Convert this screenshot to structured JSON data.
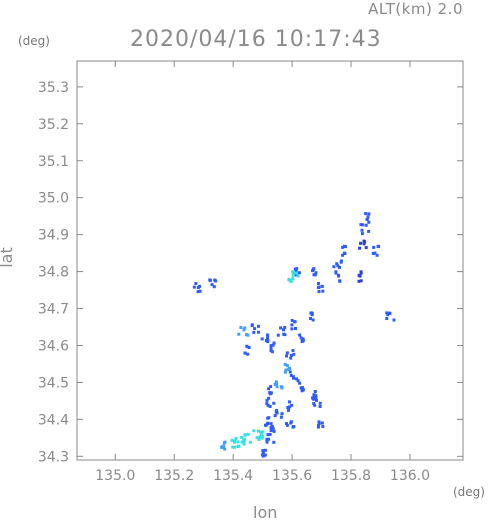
{
  "header": {
    "altitude": "ALT(km) 2.0",
    "timestamp": "2020/04/16 10:17:43"
  },
  "axes": {
    "y_unit": "(deg)",
    "x_unit": "(deg)",
    "ylabel": "lat",
    "xlabel": "lon",
    "xlim": [
      134.87,
      136.18
    ],
    "ylim": [
      34.29,
      35.37
    ],
    "xticks": [
      "135.0",
      "135.2",
      "135.4",
      "135.6",
      "135.8",
      "136.0"
    ],
    "xtick_values": [
      135.0,
      135.2,
      135.4,
      135.6,
      135.8,
      136.0
    ],
    "yticks": [
      "34.3",
      "34.4",
      "34.5",
      "34.6",
      "34.7",
      "34.8",
      "34.9",
      "35.0",
      "35.1",
      "35.2",
      "35.3"
    ],
    "ytick_values": [
      34.3,
      34.4,
      34.5,
      34.6,
      34.7,
      34.8,
      34.9,
      35.0,
      35.1,
      35.2,
      35.3
    ]
  },
  "colors": {
    "frame": "#888888",
    "echo_weak": "#2f5bff",
    "echo_medium": "#3fa0ff",
    "echo_strong": "#38e0e0",
    "echo_dark": "#2a3fd8"
  },
  "chart_data": {
    "type": "heatmap",
    "description_units": "lon/lat degrees",
    "cells": [
      {
        "lon": 135.86,
        "lat": 34.95,
        "level": "weak"
      },
      {
        "lon": 135.84,
        "lat": 34.92,
        "level": "weak"
      },
      {
        "lon": 135.83,
        "lat": 34.88,
        "level": "dark"
      },
      {
        "lon": 135.88,
        "lat": 34.86,
        "level": "weak"
      },
      {
        "lon": 135.78,
        "lat": 34.86,
        "level": "weak"
      },
      {
        "lon": 135.75,
        "lat": 34.82,
        "level": "weak"
      },
      {
        "lon": 135.82,
        "lat": 34.79,
        "level": "dark"
      },
      {
        "lon": 135.74,
        "lat": 34.79,
        "level": "weak"
      },
      {
        "lon": 135.7,
        "lat": 34.76,
        "level": "weak"
      },
      {
        "lon": 135.66,
        "lat": 34.8,
        "level": "weak"
      },
      {
        "lon": 135.62,
        "lat": 34.8,
        "level": "weak"
      },
      {
        "lon": 135.6,
        "lat": 34.79,
        "level": "strong"
      },
      {
        "lon": 135.93,
        "lat": 34.68,
        "level": "weak"
      },
      {
        "lon": 135.32,
        "lat": 34.77,
        "level": "weak"
      },
      {
        "lon": 135.27,
        "lat": 34.76,
        "level": "weak"
      },
      {
        "lon": 135.43,
        "lat": 34.64,
        "level": "medium"
      },
      {
        "lon": 135.45,
        "lat": 34.59,
        "level": "weak"
      },
      {
        "lon": 135.47,
        "lat": 34.65,
        "level": "weak"
      },
      {
        "lon": 135.51,
        "lat": 34.62,
        "level": "weak"
      },
      {
        "lon": 135.54,
        "lat": 34.6,
        "level": "weak"
      },
      {
        "lon": 135.56,
        "lat": 34.64,
        "level": "weak"
      },
      {
        "lon": 135.61,
        "lat": 34.66,
        "level": "weak"
      },
      {
        "lon": 135.65,
        "lat": 34.68,
        "level": "weak"
      },
      {
        "lon": 135.63,
        "lat": 34.62,
        "level": "weak"
      },
      {
        "lon": 135.59,
        "lat": 34.58,
        "level": "weak"
      },
      {
        "lon": 135.57,
        "lat": 34.54,
        "level": "medium"
      },
      {
        "lon": 135.55,
        "lat": 34.5,
        "level": "medium"
      },
      {
        "lon": 135.53,
        "lat": 34.48,
        "level": "weak"
      },
      {
        "lon": 135.52,
        "lat": 34.45,
        "level": "weak"
      },
      {
        "lon": 135.6,
        "lat": 34.52,
        "level": "weak"
      },
      {
        "lon": 135.63,
        "lat": 34.49,
        "level": "weak"
      },
      {
        "lon": 135.66,
        "lat": 34.47,
        "level": "weak"
      },
      {
        "lon": 135.68,
        "lat": 34.45,
        "level": "weak"
      },
      {
        "lon": 135.58,
        "lat": 34.44,
        "level": "weak"
      },
      {
        "lon": 135.55,
        "lat": 34.42,
        "level": "weak"
      },
      {
        "lon": 135.5,
        "lat": 34.4,
        "level": "weak"
      },
      {
        "lon": 135.54,
        "lat": 34.38,
        "level": "weak"
      },
      {
        "lon": 135.59,
        "lat": 34.39,
        "level": "weak"
      },
      {
        "lon": 135.7,
        "lat": 34.39,
        "level": "weak"
      },
      {
        "lon": 135.48,
        "lat": 34.36,
        "level": "strong"
      },
      {
        "lon": 135.44,
        "lat": 34.35,
        "level": "strong"
      },
      {
        "lon": 135.4,
        "lat": 34.34,
        "level": "strong"
      },
      {
        "lon": 135.37,
        "lat": 34.33,
        "level": "medium"
      },
      {
        "lon": 135.52,
        "lat": 34.35,
        "level": "weak"
      },
      {
        "lon": 135.49,
        "lat": 34.31,
        "level": "weak"
      }
    ]
  }
}
